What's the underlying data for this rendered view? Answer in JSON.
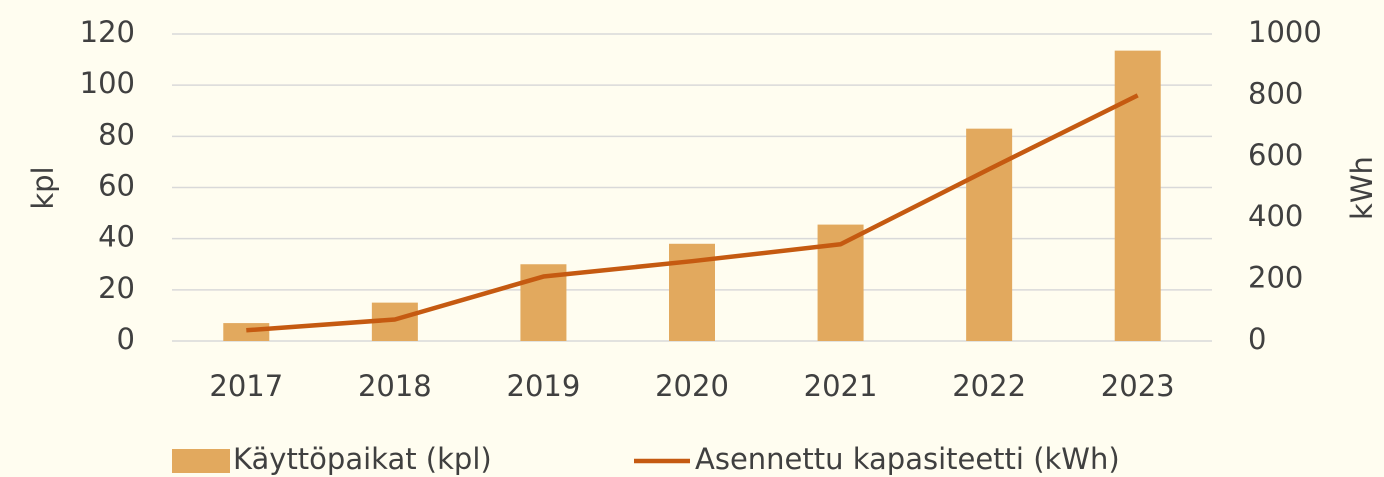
{
  "chart_data": {
    "type": "bar",
    "categories": [
      "2017",
      "2018",
      "2019",
      "2020",
      "2021",
      "2022",
      "2023"
    ],
    "series": [
      {
        "name": "Käyttöpaikat (kpl)",
        "type": "bar",
        "color": "#e2a95e",
        "values": [
          7,
          15,
          30,
          38,
          45.5,
          83,
          113.5
        ]
      },
      {
        "name": "Asennettu kapasiteetti (kWh)",
        "type": "line",
        "axis": "y2",
        "color": "#c55a11",
        "values": [
          35,
          70,
          210,
          260,
          315,
          560,
          800
        ]
      }
    ],
    "ylabel": "kpl",
    "y2label": "kWh",
    "ylim": [
      0,
      120
    ],
    "yticks": [
      0,
      20,
      40,
      60,
      80,
      100,
      120
    ],
    "y2lim": [
      0,
      1000
    ],
    "y2ticks": [
      0,
      200,
      400,
      600,
      800,
      1000
    ],
    "grid": true,
    "legend": "bottom"
  }
}
